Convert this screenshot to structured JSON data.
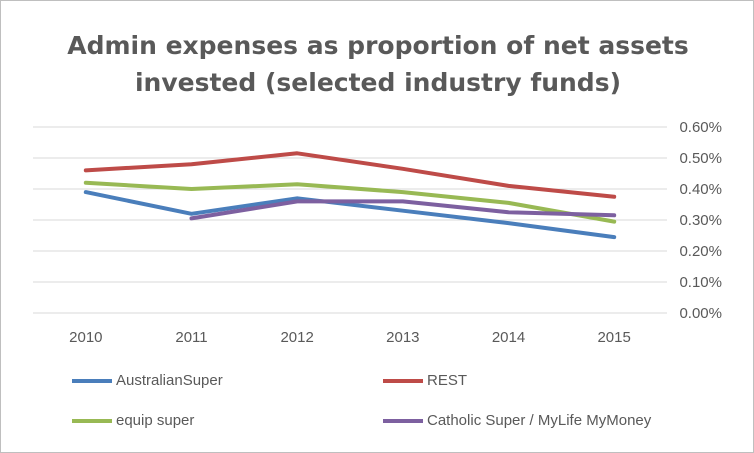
{
  "chart_data": {
    "type": "line",
    "title_line1": "Admin expenses as proportion of net assets",
    "title_line2": "invested (selected industry funds)",
    "categories": [
      "2010",
      "2011",
      "2012",
      "2013",
      "2014",
      "2015"
    ],
    "ylim": [
      0,
      0.6
    ],
    "yticks": [
      "0.00%",
      "0.10%",
      "0.20%",
      "0.30%",
      "0.40%",
      "0.50%",
      "0.60%"
    ],
    "ytick_values": [
      0,
      0.1,
      0.2,
      0.3,
      0.4,
      0.5,
      0.6
    ],
    "y_axis_side": "right",
    "grid": true,
    "legend_position": "bottom",
    "series": [
      {
        "name": "AustralianSuper",
        "color": "#4a7ebb",
        "values": [
          0.39,
          0.32,
          0.37,
          0.33,
          0.29,
          0.245
        ]
      },
      {
        "name": "REST",
        "color": "#be4b48",
        "values": [
          0.46,
          0.48,
          0.515,
          0.465,
          0.41,
          0.375
        ]
      },
      {
        "name": "equip super",
        "color": "#98b954",
        "values": [
          0.42,
          0.4,
          0.415,
          0.39,
          0.355,
          0.295
        ]
      },
      {
        "name": "Catholic Super / MyLife MyMoney",
        "color": "#7d60a0",
        "values": [
          null,
          0.305,
          0.36,
          0.36,
          0.325,
          0.315
        ]
      }
    ]
  }
}
